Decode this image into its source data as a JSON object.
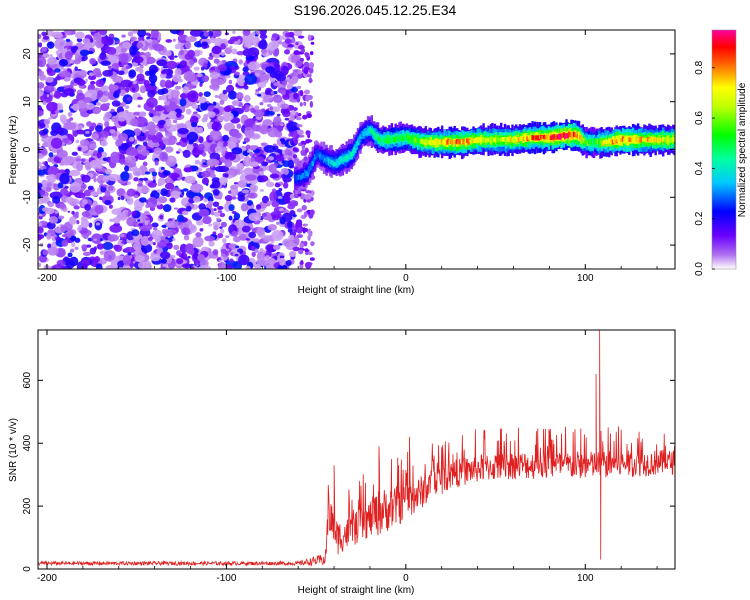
{
  "title": "S196.2026.045.12.25.E34",
  "colors": {
    "snr_line": "#e02020",
    "frame": "#000000",
    "noise_base": "#a050e0"
  },
  "chart_data": [
    {
      "type": "heatmap",
      "xlabel": "Height of straight line (km)",
      "ylabel": "Frequency (Hz)",
      "xlim": [
        -205,
        150
      ],
      "ylim": [
        -25,
        25
      ],
      "xticks": [
        -200,
        -100,
        0,
        100
      ],
      "yticks": [
        -20,
        -10,
        0,
        10,
        20
      ],
      "colorbar": {
        "label": "Normalized spectral amplitude",
        "range": [
          0,
          0.95
        ],
        "ticks": [
          "0.0",
          "0.2",
          "0.4",
          "0.6",
          "0.8"
        ],
        "colormap": "rainbow (white-violet-blue-cyan-green-yellow-red-magenta)"
      },
      "noise_region": {
        "x_range": [
          -205,
          -60
        ],
        "description": "broadband noise, low amplitude"
      },
      "signal_track": [
        {
          "x": -60,
          "y": -6,
          "amp": 0.3
        },
        {
          "x": -55,
          "y": -5,
          "amp": 0.35
        },
        {
          "x": -50,
          "y": -1,
          "amp": 0.3
        },
        {
          "x": -45,
          "y": -2,
          "amp": 0.35
        },
        {
          "x": -40,
          "y": -3,
          "amp": 0.4
        },
        {
          "x": -35,
          "y": -2,
          "amp": 0.45
        },
        {
          "x": -30,
          "y": -1,
          "amp": 0.45
        },
        {
          "x": -25,
          "y": 3,
          "amp": 0.35
        },
        {
          "x": -20,
          "y": 4,
          "amp": 0.45
        },
        {
          "x": -15,
          "y": 2,
          "amp": 0.5
        },
        {
          "x": -10,
          "y": 2,
          "amp": 0.55
        },
        {
          "x": 0,
          "y": 2.5,
          "amp": 0.55
        },
        {
          "x": 10,
          "y": 1.5,
          "amp": 0.7
        },
        {
          "x": 20,
          "y": 1.5,
          "amp": 0.8
        },
        {
          "x": 30,
          "y": 1.5,
          "amp": 0.85
        },
        {
          "x": 40,
          "y": 2,
          "amp": 0.75
        },
        {
          "x": 50,
          "y": 2,
          "amp": 0.7
        },
        {
          "x": 60,
          "y": 2,
          "amp": 0.75
        },
        {
          "x": 70,
          "y": 2.5,
          "amp": 0.85
        },
        {
          "x": 80,
          "y": 2.5,
          "amp": 0.9
        },
        {
          "x": 90,
          "y": 3,
          "amp": 0.95
        },
        {
          "x": 95,
          "y": 3,
          "amp": 0.9
        },
        {
          "x": 100,
          "y": 1.5,
          "amp": 0.6
        },
        {
          "x": 105,
          "y": 1.5,
          "amp": 0.55
        },
        {
          "x": 110,
          "y": 1.5,
          "amp": 0.75
        },
        {
          "x": 120,
          "y": 2,
          "amp": 0.85
        },
        {
          "x": 130,
          "y": 2,
          "amp": 0.8
        },
        {
          "x": 140,
          "y": 2,
          "amp": 0.75
        },
        {
          "x": 150,
          "y": 2,
          "amp": 0.7
        }
      ]
    },
    {
      "type": "line",
      "xlabel": "Height of straight line (km)",
      "ylabel": "SNR (10 * v/v)",
      "xlim": [
        -205,
        150
      ],
      "ylim": [
        0,
        760
      ],
      "xticks": [
        -200,
        -100,
        0,
        100
      ],
      "yticks": [
        0,
        200,
        400,
        600
      ],
      "envelope": [
        {
          "x": -205,
          "mean": 18,
          "amp": 12
        },
        {
          "x": -60,
          "mean": 18,
          "amp": 12
        },
        {
          "x": -45,
          "mean": 30,
          "amp": 40
        },
        {
          "x": -43,
          "mean": 180,
          "amp": 130
        },
        {
          "x": -38,
          "mean": 100,
          "amp": 110
        },
        {
          "x": -30,
          "mean": 120,
          "amp": 100
        },
        {
          "x": -20,
          "mean": 160,
          "amp": 120
        },
        {
          "x": -15,
          "mean": 180,
          "amp": 150
        },
        {
          "x": -5,
          "mean": 200,
          "amp": 130
        },
        {
          "x": 5,
          "mean": 230,
          "amp": 110
        },
        {
          "x": 15,
          "mean": 270,
          "amp": 100
        },
        {
          "x": 25,
          "mean": 300,
          "amp": 90
        },
        {
          "x": 40,
          "mean": 320,
          "amp": 90
        },
        {
          "x": 60,
          "mean": 330,
          "amp": 90
        },
        {
          "x": 80,
          "mean": 330,
          "amp": 90
        },
        {
          "x": 100,
          "mean": 330,
          "amp": 90
        },
        {
          "x": 150,
          "mean": 340,
          "amp": 80
        }
      ],
      "spikes": [
        {
          "x": -40,
          "y": 330
        },
        {
          "x": -15,
          "y": 390
        },
        {
          "x": 2,
          "y": 420
        },
        {
          "x": 108,
          "y": 760
        },
        {
          "x": 108.6,
          "y": 30
        },
        {
          "x": 106,
          "y": 620
        }
      ]
    }
  ]
}
